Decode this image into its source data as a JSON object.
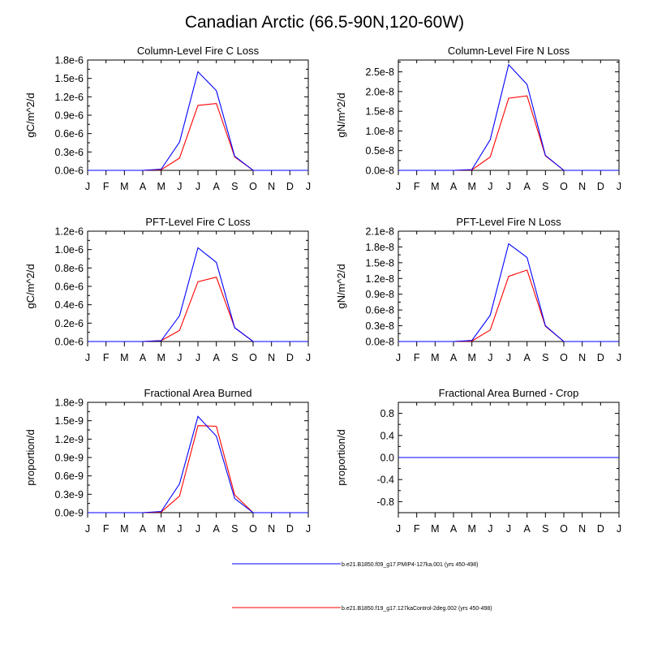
{
  "figure": {
    "title": "Canadian Arctic (66.5-90N,120-60W)",
    "legend": [
      {
        "label": "b.e21.B1850.f09_g17.PMIP4-127ka.001 (yrs 450-498)",
        "color": "#0000ff"
      },
      {
        "label": "b.e21.B1850.f19_g17.127kaControl-2deg.002 (yrs 450-498)",
        "color": "#ff0000"
      }
    ]
  },
  "chart_data": [
    {
      "type": "line",
      "title": "Column-Level Fire C Loss",
      "xlabel": "",
      "ylabel": "gC/m^2/d",
      "categories": [
        "J",
        "F",
        "M",
        "A",
        "M",
        "J",
        "J",
        "A",
        "S",
        "O",
        "N",
        "D",
        "J"
      ],
      "yticks": [
        "0.0e-6",
        "0.3e-6",
        "0.6e-6",
        "0.9e-6",
        "1.2e-6",
        "1.5e-6",
        "1.8e-6"
      ],
      "ytick_values": [
        0,
        0.3,
        0.6,
        0.9,
        1.2,
        1.5,
        1.8
      ],
      "ylim": [
        0,
        1.8
      ],
      "series": [
        {
          "color": "#0000ff",
          "values": [
            0,
            0,
            0,
            0,
            0.02,
            0.46,
            1.61,
            1.3,
            0.23,
            0,
            0,
            0,
            0
          ]
        },
        {
          "color": "#ff0000",
          "values": [
            0,
            0,
            0,
            0,
            0.01,
            0.2,
            1.06,
            1.09,
            0.22,
            0,
            0,
            0,
            0
          ]
        }
      ]
    },
    {
      "type": "line",
      "title": "Column-Level Fire N Loss",
      "xlabel": "",
      "ylabel": "gN/m^2/d",
      "categories": [
        "J",
        "F",
        "M",
        "A",
        "M",
        "J",
        "J",
        "A",
        "S",
        "O",
        "N",
        "D",
        "J"
      ],
      "yticks": [
        "0.0e-8",
        "0.5e-8",
        "1.0e-8",
        "1.5e-8",
        "2.0e-8",
        "2.5e-8"
      ],
      "ytick_values": [
        0,
        0.5,
        1.0,
        1.5,
        2.0,
        2.5
      ],
      "ylim": [
        0,
        2.8
      ],
      "series": [
        {
          "color": "#0000ff",
          "values": [
            0,
            0,
            0,
            0,
            0.02,
            0.78,
            2.68,
            2.18,
            0.38,
            0,
            0,
            0,
            0
          ]
        },
        {
          "color": "#ff0000",
          "values": [
            0,
            0,
            0,
            0,
            0.01,
            0.34,
            1.83,
            1.89,
            0.37,
            0,
            0,
            0,
            0
          ]
        }
      ]
    },
    {
      "type": "line",
      "title": "PFT-Level Fire C Loss",
      "xlabel": "",
      "ylabel": "gC/m^2/d",
      "categories": [
        "J",
        "F",
        "M",
        "A",
        "M",
        "J",
        "J",
        "A",
        "S",
        "O",
        "N",
        "D",
        "J"
      ],
      "yticks": [
        "0.0e-6",
        "0.2e-6",
        "0.4e-6",
        "0.6e-6",
        "0.8e-6",
        "1.0e-6",
        "1.2e-6"
      ],
      "ytick_values": [
        0,
        0.2,
        0.4,
        0.6,
        0.8,
        1.0,
        1.2
      ],
      "ylim": [
        0,
        1.2
      ],
      "series": [
        {
          "color": "#0000ff",
          "values": [
            0,
            0,
            0,
            0,
            0.01,
            0.28,
            1.02,
            0.86,
            0.15,
            0,
            0,
            0,
            0
          ]
        },
        {
          "color": "#ff0000",
          "values": [
            0,
            0,
            0,
            0,
            0.01,
            0.12,
            0.65,
            0.7,
            0.15,
            0,
            0,
            0,
            0
          ]
        }
      ]
    },
    {
      "type": "line",
      "title": "PFT-Level Fire N Loss",
      "xlabel": "",
      "ylabel": "gN/m^2/d",
      "categories": [
        "J",
        "F",
        "M",
        "A",
        "M",
        "J",
        "J",
        "A",
        "S",
        "O",
        "N",
        "D",
        "J"
      ],
      "yticks": [
        "0.0e-8",
        "0.3e-8",
        "0.6e-8",
        "0.9e-8",
        "1.2e-8",
        "1.5e-8",
        "1.8e-8",
        "2.1e-8"
      ],
      "ytick_values": [
        0,
        0.3,
        0.6,
        0.9,
        1.2,
        1.5,
        1.8,
        2.1
      ],
      "ylim": [
        0,
        2.1
      ],
      "series": [
        {
          "color": "#0000ff",
          "values": [
            0,
            0,
            0,
            0,
            0.02,
            0.5,
            1.86,
            1.6,
            0.3,
            0,
            0,
            0,
            0
          ]
        },
        {
          "color": "#ff0000",
          "values": [
            0,
            0,
            0,
            0,
            0.01,
            0.22,
            1.24,
            1.36,
            0.29,
            0,
            0,
            0,
            0
          ]
        }
      ]
    },
    {
      "type": "line",
      "title": "Fractional Area Burned",
      "xlabel": "",
      "ylabel": "proportion/d",
      "categories": [
        "J",
        "F",
        "M",
        "A",
        "M",
        "J",
        "J",
        "A",
        "S",
        "O",
        "N",
        "D",
        "J"
      ],
      "yticks": [
        "0.0e-9",
        "0.3e-9",
        "0.6e-9",
        "0.9e-9",
        "1.2e-9",
        "1.5e-9",
        "1.8e-9"
      ],
      "ytick_values": [
        0,
        0.3,
        0.6,
        0.9,
        1.2,
        1.5,
        1.8
      ],
      "ylim": [
        0,
        1.8
      ],
      "series": [
        {
          "color": "#0000ff",
          "values": [
            0,
            0,
            0,
            0,
            0.02,
            0.47,
            1.57,
            1.25,
            0.23,
            0,
            0,
            0,
            0
          ]
        },
        {
          "color": "#ff0000",
          "values": [
            0,
            0,
            0,
            0,
            0.01,
            0.27,
            1.42,
            1.41,
            0.29,
            0,
            0,
            0,
            0
          ]
        }
      ]
    },
    {
      "type": "line",
      "title": "Fractional Area Burned - Crop",
      "xlabel": "",
      "ylabel": "proportion/d",
      "categories": [
        "J",
        "F",
        "M",
        "A",
        "M",
        "J",
        "J",
        "A",
        "S",
        "O",
        "N",
        "D",
        "J"
      ],
      "yticks": [
        "-0.8",
        "-0.4",
        "0.0",
        "0.4",
        "0.8"
      ],
      "ytick_values": [
        -0.8,
        -0.4,
        0.0,
        0.4,
        0.8
      ],
      "ylim": [
        -1.0,
        1.0
      ],
      "series": [
        {
          "color": "#0000ff",
          "values": [
            0,
            0,
            0,
            0,
            0,
            0,
            0,
            0,
            0,
            0,
            0,
            0,
            0
          ]
        },
        {
          "color": "#ff0000",
          "values": [
            0,
            0,
            0,
            0,
            0,
            0,
            0,
            0,
            0,
            0,
            0,
            0,
            0
          ]
        }
      ]
    }
  ]
}
